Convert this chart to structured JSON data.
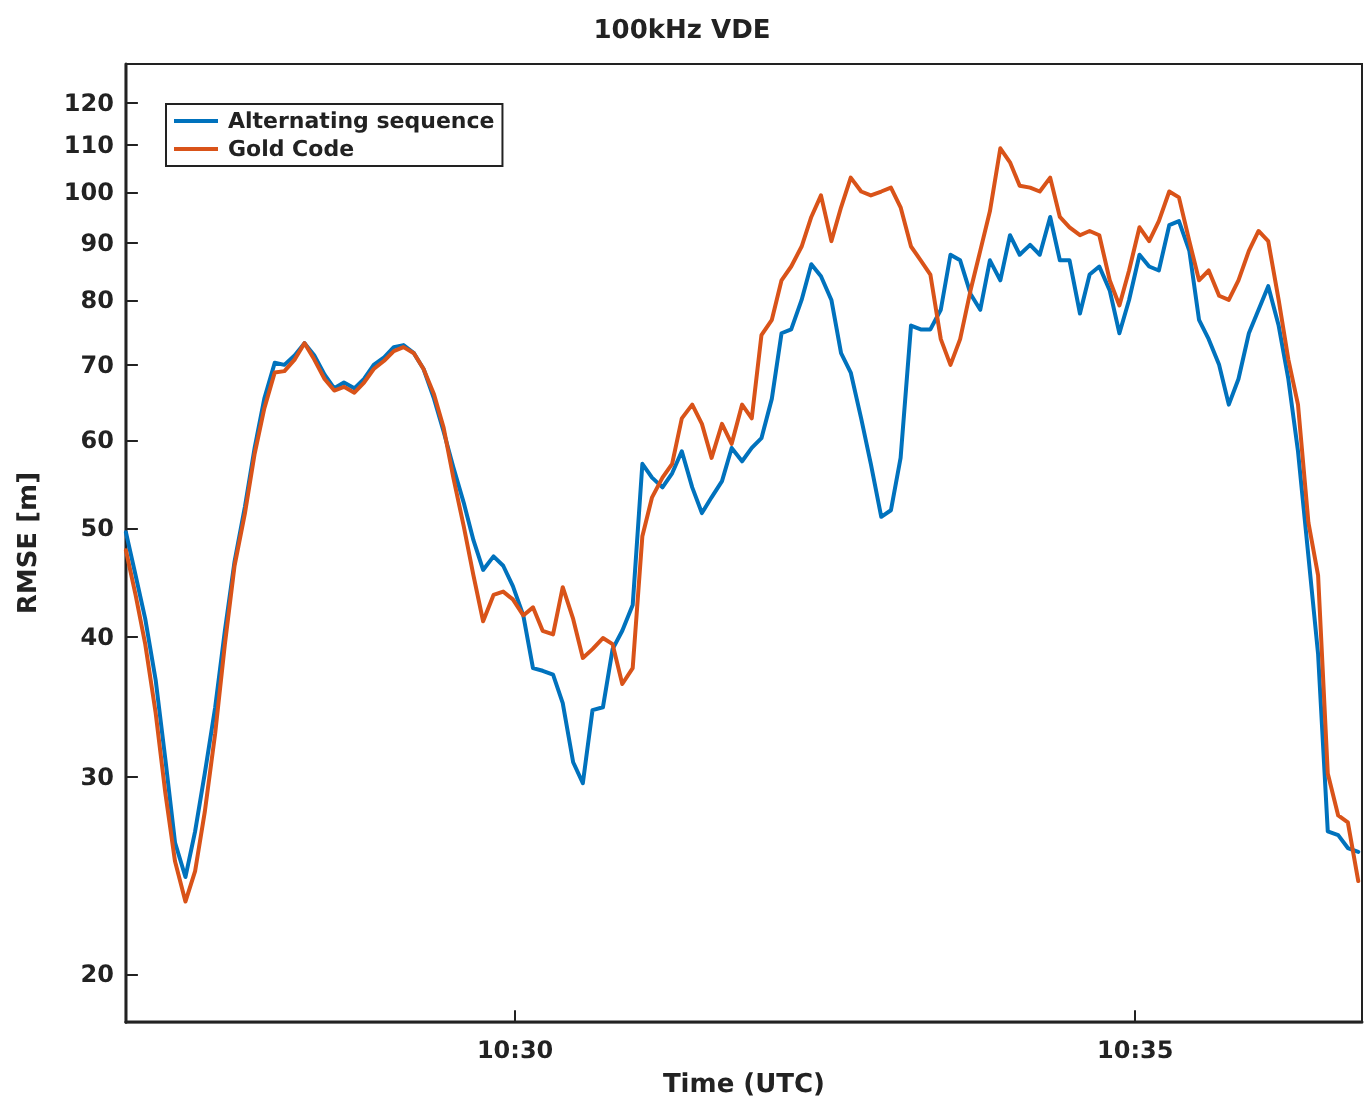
{
  "chart_data": {
    "type": "line",
    "title": "100kHz VDE",
    "xlabel": "Time (UTC)",
    "ylabel": "RMSE [m]",
    "x": [
      10.4477,
      10.449,
      10.4503,
      10.4517,
      10.453,
      10.4543,
      10.4557,
      10.457,
      10.4583,
      10.4597,
      10.461,
      10.4623,
      10.4637,
      10.465,
      10.4663,
      10.4677,
      10.469,
      10.4704,
      10.4717,
      10.473,
      10.4744,
      10.4757,
      10.477,
      10.4784,
      10.4797,
      10.481,
      10.4824,
      10.4837,
      10.485,
      10.4864,
      10.4877,
      10.4891,
      10.4904,
      10.4917,
      10.4931,
      10.4944,
      10.4957,
      10.4971,
      10.4984,
      10.4997,
      10.5011,
      10.5024,
      10.5037,
      10.5051,
      10.5064,
      10.5078,
      10.5091,
      10.5104,
      10.5118,
      10.5131,
      10.5144,
      10.5158,
      10.5171,
      10.5184,
      10.5198,
      10.5211,
      10.5224,
      10.5238,
      10.5251,
      10.5264,
      10.5278,
      10.5291,
      10.5305,
      10.5318,
      10.5331,
      10.5345,
      10.5358,
      10.5371,
      10.5385,
      10.5398,
      10.5411,
      10.5425,
      10.5438,
      10.5451,
      10.5465,
      10.5478,
      10.5492,
      10.5505,
      10.5518,
      10.5532,
      10.5545,
      10.5558,
      10.5572,
      10.5585,
      10.5598,
      10.5612,
      10.5625,
      10.5638,
      10.5652,
      10.5665,
      10.5678,
      10.5692,
      10.5705,
      10.5719,
      10.5732,
      10.5745,
      10.5759,
      10.5772,
      10.5785,
      10.5799,
      10.5812,
      10.5825,
      10.5839,
      10.5852,
      10.5865,
      10.5879,
      10.5892,
      10.5906,
      10.5919,
      10.5932,
      10.5946,
      10.5959,
      10.5972,
      10.5986,
      10.5999,
      10.6012,
      10.6026,
      10.6039,
      10.6052,
      10.6066,
      10.6079,
      10.6092,
      10.6106,
      10.6119,
      10.6133
    ],
    "series": [
      {
        "name": "Alternating sequence",
        "color": "#0072bd",
        "values": [
          49.6,
          45.4,
          41.5,
          36.6,
          31.1,
          26.2,
          24.4,
          26.8,
          30.2,
          34.6,
          40.5,
          46.7,
          52.3,
          59.0,
          65.3,
          70.3,
          70.0,
          71.4,
          73.2,
          71.4,
          68.6,
          66.7,
          67.5,
          66.7,
          68.0,
          70.0,
          71.1,
          72.6,
          72.9,
          71.7,
          69.4,
          65.3,
          61.0,
          56.7,
          52.7,
          48.8,
          45.9,
          47.2,
          46.3,
          44.4,
          41.8,
          37.5,
          37.3,
          37.0,
          34.9,
          30.9,
          29.6,
          34.4,
          34.6,
          39.0,
          40.5,
          42.7,
          57.1,
          55.5,
          54.4,
          56.0,
          58.6,
          54.4,
          51.6,
          53.3,
          55.1,
          59.0,
          57.4,
          59.0,
          60.2,
          65.3,
          74.7,
          75.3,
          80.0,
          86.1,
          84.0,
          80.0,
          71.7,
          68.9,
          62.7,
          57.1,
          51.2,
          51.9,
          57.8,
          75.9,
          75.3,
          75.3,
          78.4,
          87.8,
          86.8,
          81.0,
          78.4,
          86.8,
          83.3,
          91.4,
          87.8,
          89.6,
          87.8,
          94.9,
          86.8,
          86.8,
          77.8,
          84.3,
          85.7,
          81.6,
          74.7,
          80.0,
          87.8,
          85.7,
          85.0,
          93.3,
          94.1,
          88.5,
          76.8,
          73.8,
          70.0,
          64.5,
          68.0,
          74.7,
          78.4,
          82.3,
          75.9,
          68.0,
          58.6,
          47.2,
          38.6,
          26.8,
          26.6,
          25.9,
          25.7
        ]
      },
      {
        "name": "Gold Code",
        "color": "#d95319",
        "values": [
          47.8,
          43.6,
          39.4,
          34.2,
          29.0,
          25.2,
          23.2,
          24.7,
          27.9,
          32.8,
          39.4,
          46.3,
          51.6,
          58.3,
          64.0,
          68.9,
          69.1,
          70.8,
          73.2,
          70.8,
          68.0,
          66.4,
          66.9,
          66.1,
          67.5,
          69.4,
          70.6,
          72.0,
          72.6,
          71.7,
          69.4,
          65.9,
          61.5,
          55.5,
          50.2,
          45.4,
          41.3,
          43.6,
          43.9,
          43.2,
          41.8,
          42.5,
          40.5,
          40.2,
          44.3,
          41.5,
          38.3,
          39.0,
          39.9,
          39.4,
          36.3,
          37.5,
          49.2,
          53.3,
          55.5,
          57.1,
          62.7,
          64.5,
          62.0,
          57.8,
          62.0,
          59.5,
          64.5,
          62.7,
          74.4,
          76.8,
          83.3,
          85.7,
          89.3,
          94.9,
          99.2,
          90.3,
          96.8,
          102.9,
          100.0,
          99.2,
          100.0,
          100.8,
          96.8,
          89.3,
          86.8,
          84.3,
          73.8,
          70.0,
          73.8,
          81.6,
          88.5,
          96.0,
          109.3,
          106.2,
          101.2,
          100.8,
          100.0,
          102.9,
          94.9,
          92.9,
          91.4,
          92.2,
          91.4,
          83.3,
          79.1,
          85.0,
          92.9,
          90.3,
          94.1,
          100.0,
          98.8,
          90.3,
          83.3,
          85.0,
          80.7,
          80.0,
          83.3,
          88.5,
          92.2,
          90.3,
          80.0,
          70.8,
          64.5,
          50.6,
          45.4,
          30.2,
          27.7,
          27.3,
          24.2
        ]
      }
    ],
    "xlim": [
      10.4477,
      10.6138
    ],
    "xticks": [
      {
        "value": 10.5,
        "label": "10:30"
      },
      {
        "value": 10.583333,
        "label": "10:35"
      }
    ],
    "log": true,
    "ylim": [
      18.1,
      130
    ],
    "yticks": [
      20,
      30,
      40,
      50,
      60,
      70,
      80,
      90,
      100,
      110,
      120
    ],
    "legend": "top left",
    "marker": "none",
    "line_style": "solid",
    "grid": false
  }
}
